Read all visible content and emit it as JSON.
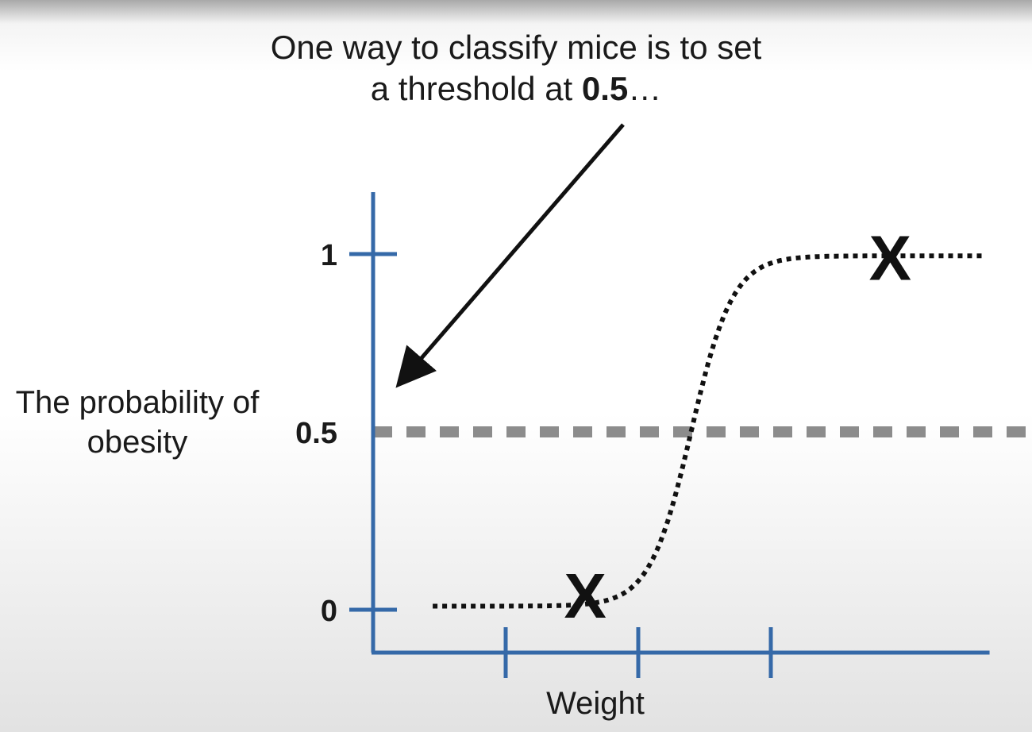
{
  "chart_data": {
    "type": "line",
    "annotation": {
      "text_before": "One way to classify mice is to set a threshold at ",
      "text_bold": "0.5",
      "text_after": "…"
    },
    "ylabel": "The probability of obesity",
    "xlabel": "Weight",
    "xlim": [
      0,
      9.3
    ],
    "ylim": [
      0,
      1
    ],
    "x_ticks": [
      2,
      4,
      6
    ],
    "y_ticks": [
      {
        "value": 0,
        "label": "0"
      },
      {
        "value": 0.5,
        "label": "0.5"
      },
      {
        "value": 1,
        "label": "1"
      }
    ],
    "threshold": 0.5,
    "curve": {
      "midpoint": 4.8,
      "steepness": 3.2,
      "x_range": [
        0.9,
        9.2
      ]
    },
    "points": [
      {
        "x": 3.2,
        "y": 0.04,
        "label": "X"
      },
      {
        "x": 7.8,
        "y": 0.99,
        "label": "X"
      }
    ],
    "colors": {
      "axis": "#3569a8",
      "threshold": "#8c8c8c",
      "curve": "#111111",
      "text": "#1a1a1a"
    }
  }
}
